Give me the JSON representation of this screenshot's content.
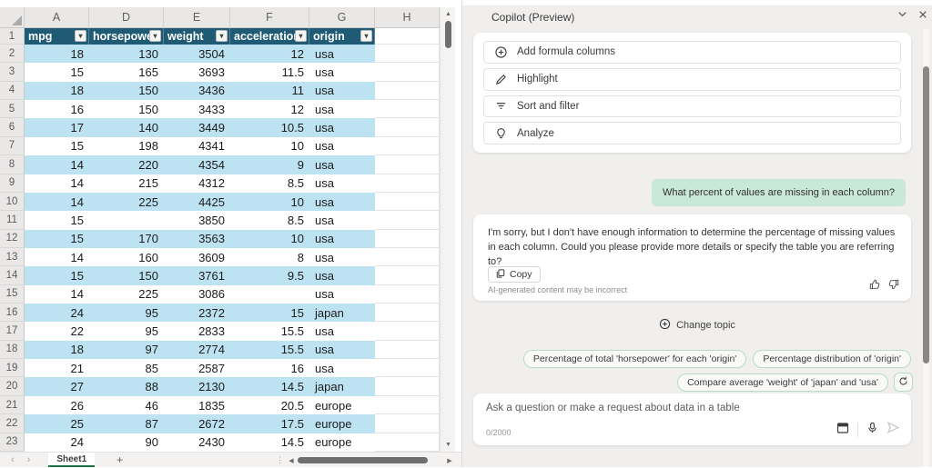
{
  "spreadsheet": {
    "column_letters": [
      "A",
      "D",
      "E",
      "F",
      "G",
      "H"
    ],
    "table_headers": [
      "mpg",
      "horsepower",
      "weight",
      "acceleration",
      "origin"
    ],
    "rows": [
      [
        "18",
        "130",
        "3504",
        "12",
        "usa"
      ],
      [
        "15",
        "165",
        "3693",
        "11.5",
        "usa"
      ],
      [
        "18",
        "150",
        "3436",
        "11",
        "usa"
      ],
      [
        "16",
        "150",
        "3433",
        "12",
        "usa"
      ],
      [
        "17",
        "140",
        "3449",
        "10.5",
        "usa"
      ],
      [
        "15",
        "198",
        "4341",
        "10",
        "usa"
      ],
      [
        "14",
        "220",
        "4354",
        "9",
        "usa"
      ],
      [
        "14",
        "215",
        "4312",
        "8.5",
        "usa"
      ],
      [
        "14",
        "225",
        "4425",
        "10",
        "usa"
      ],
      [
        "15",
        "",
        "3850",
        "8.5",
        "usa"
      ],
      [
        "15",
        "170",
        "3563",
        "10",
        "usa"
      ],
      [
        "14",
        "160",
        "3609",
        "8",
        "usa"
      ],
      [
        "15",
        "150",
        "3761",
        "9.5",
        "usa"
      ],
      [
        "14",
        "225",
        "3086",
        "",
        "usa"
      ],
      [
        "24",
        "95",
        "2372",
        "15",
        "japan"
      ],
      [
        "22",
        "95",
        "2833",
        "15.5",
        "usa"
      ],
      [
        "18",
        "97",
        "2774",
        "15.5",
        "usa"
      ],
      [
        "21",
        "85",
        "2587",
        "16",
        "usa"
      ],
      [
        "27",
        "88",
        "2130",
        "14.5",
        "japan"
      ],
      [
        "26",
        "46",
        "1835",
        "20.5",
        "europe"
      ],
      [
        "25",
        "87",
        "2672",
        "17.5",
        "europe"
      ],
      [
        "24",
        "90",
        "2430",
        "14.5",
        "europe"
      ]
    ],
    "first_row_number": 1,
    "sheet_tab": "Sheet1",
    "colors": {
      "header_bg": "#1F5B74",
      "band_bg": "#BDE2F1",
      "tab_accent": "#1E7145"
    }
  },
  "copilot": {
    "title": "Copilot (Preview)",
    "actions": [
      {
        "icon": "plus-circle-icon",
        "label": "Add formula columns"
      },
      {
        "icon": "pen-icon",
        "label": "Highlight"
      },
      {
        "icon": "filter-icon",
        "label": "Sort and filter"
      },
      {
        "icon": "lightbulb-icon",
        "label": "Analyze"
      }
    ],
    "user_message": "What percent of values are missing in each column?",
    "response": {
      "text": "I'm sorry, but I don't have enough information to determine the percentage of missing values in each column. Could you please provide more details or specify the table you are referring to?",
      "copy_label": "Copy",
      "disclaimer": "AI-generated content may be incorrect"
    },
    "change_topic_label": "Change topic",
    "suggestions": [
      "Percentage of total 'horsepower' for each 'origin'",
      "Percentage distribution of 'origin'",
      "Compare average 'weight' of 'japan' and 'usa'"
    ],
    "input": {
      "placeholder": "Ask a question or make a request about data in a table",
      "counter": "0/2000"
    }
  }
}
